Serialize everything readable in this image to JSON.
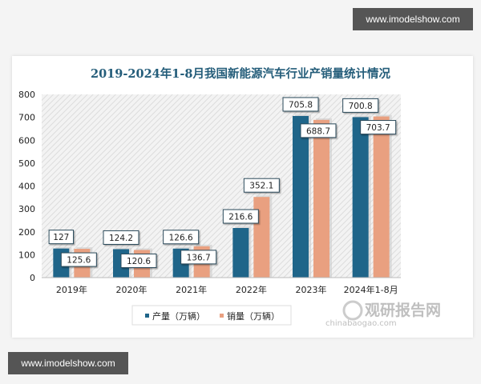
{
  "watermarks": {
    "top": "www.imodelshow.com",
    "bottom": "www.imodelshow.com"
  },
  "brand": {
    "name": "观研报告网",
    "url": "chinabaogao.com"
  },
  "chart_data": {
    "type": "bar",
    "title": "2019-2024年1-8月我国新能源汽车行业产销量统计情况",
    "categories": [
      "2019年",
      "2020年",
      "2021年",
      "2022年",
      "2023年",
      "2024年1-8月"
    ],
    "series": [
      {
        "name": "产量（万辆）",
        "values": [
          127,
          124.2,
          126.6,
          216.6,
          705.8,
          700.8
        ],
        "color": "#1f6589"
      },
      {
        "name": "销量（万辆）",
        "values": [
          125.6,
          120.6,
          136.7,
          352.1,
          688.7,
          703.7
        ],
        "color": "#e9a080"
      }
    ],
    "ylim": [
      0,
      800
    ],
    "yticks": [
      0,
      100,
      200,
      300,
      400,
      500,
      600,
      700,
      800
    ],
    "grid": false,
    "background": "hatched",
    "legend": "bottom",
    "title_color": "#245d7a"
  }
}
